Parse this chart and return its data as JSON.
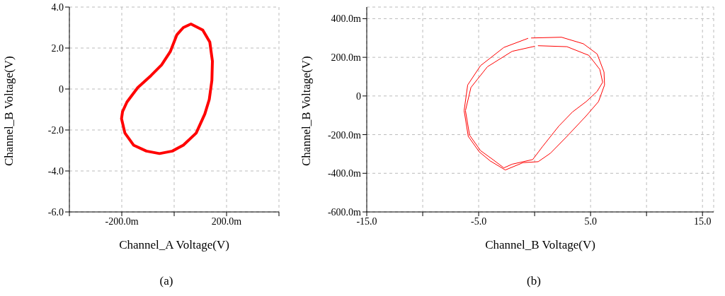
{
  "chart_data": [
    {
      "type": "line",
      "xlabel": "Channel_A Voltage(V)",
      "ylabel": "Channel_B Voltage(V)",
      "annotations": [
        "(a)"
      ],
      "xlim": [
        -400,
        400
      ],
      "xticks": [
        {
          "value": -400,
          "label": null
        },
        {
          "value": -200,
          "label": "-200.0m"
        },
        {
          "value": 0,
          "label": null
        },
        {
          "value": 200,
          "label": "200.0m"
        },
        {
          "value": 400,
          "label": null
        }
      ],
      "ylim": [
        -6,
        4
      ],
      "yticks": [
        {
          "value": -6,
          "label": "-6.0"
        },
        {
          "value": -4,
          "label": "-4.0"
        },
        {
          "value": -2,
          "label": "-2.0"
        },
        0,
        {
          "value": 2,
          "label": "2.0"
        },
        {
          "value": 4,
          "label": "4.0"
        }
      ],
      "grid": true,
      "marker": "none",
      "line_style": "solid",
      "series": [
        {
          "color": "#ff0000",
          "x": [
            64,
            109,
            136,
            146,
            144,
            134,
            117,
            84,
            35,
            -7,
            -56,
            -106,
            -155,
            -188,
            -201,
            -197,
            -180,
            -139,
            -89,
            -48,
            -15,
            10,
            35,
            58
          ],
          "values": [
            3.17,
            2.88,
            2.29,
            1.36,
            0.42,
            -0.51,
            -1.22,
            -2.15,
            -2.74,
            -3.03,
            -3.15,
            -3.03,
            -2.74,
            -2.15,
            -1.45,
            -1.1,
            -0.63,
            0.07,
            0.65,
            1.18,
            1.82,
            2.64,
            3.0,
            3.14
          ]
        }
      ]
    },
    {
      "type": "line",
      "xlabel": "Channel_B Voltage(V)",
      "ylabel": "Channel_B Voltage(V)",
      "annotations": [
        "(b)"
      ],
      "xlim": [
        -15,
        16
      ],
      "xticks": [
        {
          "value": -15,
          "label": "-15.0"
        },
        {
          "value": -10,
          "label": null
        },
        {
          "value": -5,
          "label": "-5.0"
        },
        {
          "value": 0,
          "label": null
        },
        {
          "value": 5,
          "label": "5.0"
        },
        {
          "value": 10,
          "label": null
        },
        {
          "value": 15,
          "label": "15.0"
        }
      ],
      "ylim": [
        -600,
        460
      ],
      "yticks": [
        {
          "value": -600,
          "label": "-600.0m"
        },
        {
          "value": -400,
          "label": "-400.0m"
        },
        {
          "value": -200,
          "label": "-200.0m"
        },
        0,
        {
          "value": 200,
          "label": "200.0m"
        },
        {
          "value": 400,
          "label": "400.0m"
        }
      ],
      "grid": true,
      "marker": "none",
      "line_style": "solid",
      "series": [
        {
          "color": "#ff0000",
          "x": [
            -0.29,
            2.4,
            4.36,
            5.59,
            6.2,
            6.25,
            5.71,
            4.61,
            2.89,
            1.42,
            0.32,
            -1.03,
            -2.62,
            -3.97,
            -4.95,
            -5.93,
            -6.3,
            -5.98,
            -4.83,
            -2.75,
            -0.6
          ],
          "values": [
            300,
            304,
            270,
            217,
            124,
            57,
            -29,
            -103,
            -209,
            -296,
            -340,
            -345,
            -383,
            -336,
            -289,
            -209,
            -76,
            57,
            157,
            251,
            298
          ]
        },
        {
          "color": "#ff0000",
          "x": [
            0.32,
            2.89,
            4.85,
            5.83,
            6.08,
            5.59,
            4.61,
            3.38,
            2.16,
            0.69,
            -0.17,
            -2.01,
            -2.75,
            -3.73,
            -4.83,
            -5.81,
            -6.18,
            -5.69,
            -4.22,
            -2.01,
            0.0
          ],
          "values": [
            260,
            255,
            210,
            137,
            71,
            24,
            -29,
            -83,
            -156,
            -263,
            -329,
            -353,
            -372,
            -329,
            -283,
            -203,
            -76,
            44,
            151,
            231,
            257
          ]
        }
      ]
    }
  ]
}
